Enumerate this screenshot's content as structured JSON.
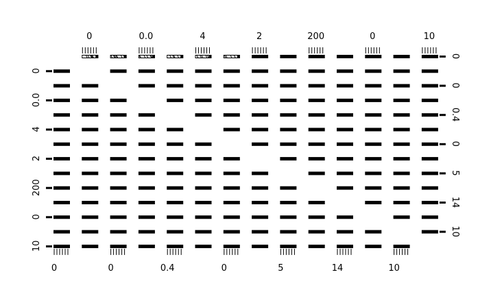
{
  "chart_data": {
    "type": "scatter",
    "variant": "pairs-matrix",
    "title": "",
    "n_vars": 14,
    "panel_style": "dense-rug",
    "mark_color": "#000000",
    "background_color": "#ffffff",
    "axes": {
      "top": [
        {
          "column": 1,
          "label": "0"
        },
        {
          "column": 3,
          "label": "0.0"
        },
        {
          "column": 5,
          "label": "4"
        },
        {
          "column": 7,
          "label": "2"
        },
        {
          "column": 9,
          "label": "200"
        },
        {
          "column": 11,
          "label": "0"
        },
        {
          "column": 13,
          "label": "10"
        }
      ],
      "bottom": [
        {
          "column": 0,
          "label": "0"
        },
        {
          "column": 2,
          "label": "0"
        },
        {
          "column": 4,
          "label": "0.4"
        },
        {
          "column": 6,
          "label": "0"
        },
        {
          "column": 8,
          "label": "5"
        },
        {
          "column": 10,
          "label": "14"
        },
        {
          "column": 12,
          "label": "10"
        }
      ],
      "left": [
        {
          "row": 1,
          "label": "0"
        },
        {
          "row": 3,
          "label": "0.0"
        },
        {
          "row": 5,
          "label": "4"
        },
        {
          "row": 7,
          "label": "2"
        },
        {
          "row": 9,
          "label": "200"
        },
        {
          "row": 11,
          "label": "0"
        },
        {
          "row": 13,
          "label": "10"
        }
      ],
      "right": [
        {
          "row": 0,
          "label": "0"
        },
        {
          "row": 2,
          "label": "0"
        },
        {
          "row": 4,
          "label": "0.4"
        },
        {
          "row": 6,
          "label": "0"
        },
        {
          "row": 8,
          "label": "5"
        },
        {
          "row": 10,
          "label": "14"
        },
        {
          "row": 12,
          "label": "10"
        }
      ]
    }
  }
}
